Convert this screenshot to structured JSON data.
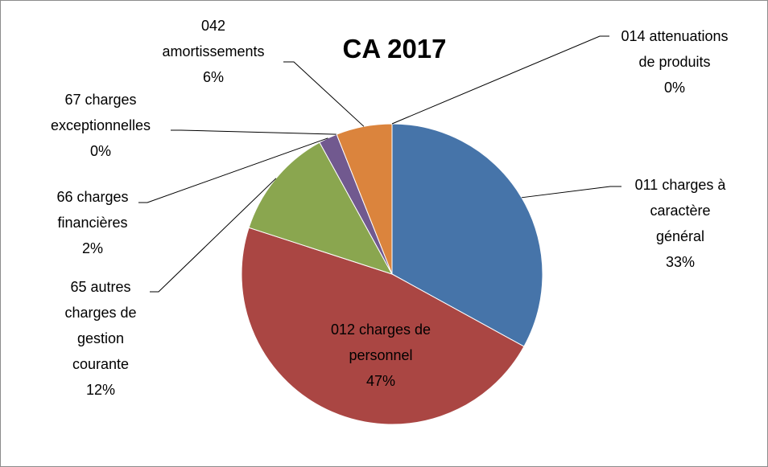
{
  "chart_data": {
    "type": "pie",
    "title": "CA 2017",
    "categories": [
      "011 charges à caractère général",
      "012 charges de personnel",
      "65 autres charges de gestion courante",
      "66 charges financières",
      "67 charges exceptionnelles",
      "042 amortissements",
      "014 attenuations de produits"
    ],
    "values": [
      33,
      47,
      12,
      2,
      0,
      6,
      0
    ],
    "value_labels": [
      "33%",
      "47%",
      "12%",
      "2%",
      "0%",
      "6%",
      "0%"
    ],
    "colors": [
      "#4674a9",
      "#aa4643",
      "#8aa64f",
      "#71598f",
      "#4198af",
      "#db843d",
      "#93a9cf"
    ]
  }
}
